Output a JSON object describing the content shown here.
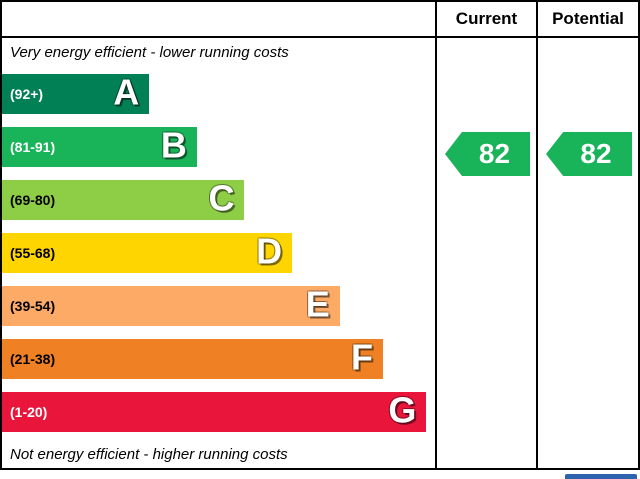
{
  "header": {
    "current_label": "Current",
    "potential_label": "Potential"
  },
  "captions": {
    "top": "Very energy efficient - lower running costs",
    "bottom": "Not energy efficient - higher running costs"
  },
  "bands": [
    {
      "range": "(92+)",
      "letter": "A",
      "color": "#008054",
      "text_color": "#ffffff",
      "width_pct": 34
    },
    {
      "range": "(81-91)",
      "letter": "B",
      "color": "#19b459",
      "text_color": "#ffffff",
      "width_pct": 45
    },
    {
      "range": "(69-80)",
      "letter": "C",
      "color": "#8dce46",
      "text_color": "#000000",
      "width_pct": 56
    },
    {
      "range": "(55-68)",
      "letter": "D",
      "color": "#ffd500",
      "text_color": "#000000",
      "width_pct": 67
    },
    {
      "range": "(39-54)",
      "letter": "E",
      "color": "#fcaa65",
      "text_color": "#000000",
      "width_pct": 78
    },
    {
      "range": "(21-38)",
      "letter": "F",
      "color": "#ef8023",
      "text_color": "#000000",
      "width_pct": 88
    },
    {
      "range": "(1-20)",
      "letter": "G",
      "color": "#e9153b",
      "text_color": "#ffffff",
      "width_pct": 98
    }
  ],
  "ratings": {
    "current": {
      "value": "82",
      "band": "B",
      "arrow_color": "#19b459"
    },
    "potential": {
      "value": "82",
      "band": "B",
      "arrow_color": "#19b459"
    }
  },
  "chart_data": {
    "type": "bar",
    "title": "Energy efficiency rating chart",
    "categories": [
      "A (92+)",
      "B (81-91)",
      "C (69-80)",
      "D (55-68)",
      "E (39-54)",
      "F (21-38)",
      "G (1-20)"
    ],
    "band_colors": [
      "#008054",
      "#19b459",
      "#8dce46",
      "#ffd500",
      "#fcaa65",
      "#ef8023",
      "#e9153b"
    ],
    "series": [
      {
        "name": "Current",
        "values": [
          82
        ],
        "band": "B"
      },
      {
        "name": "Potential",
        "values": [
          82
        ],
        "band": "B"
      }
    ],
    "annotations": [
      "Very energy efficient - lower running costs",
      "Not energy efficient - higher running costs"
    ],
    "xlabel": "",
    "ylabel": "",
    "ylim": [
      1,
      100
    ],
    "legend_position": "top-right-columns",
    "grid": false
  }
}
